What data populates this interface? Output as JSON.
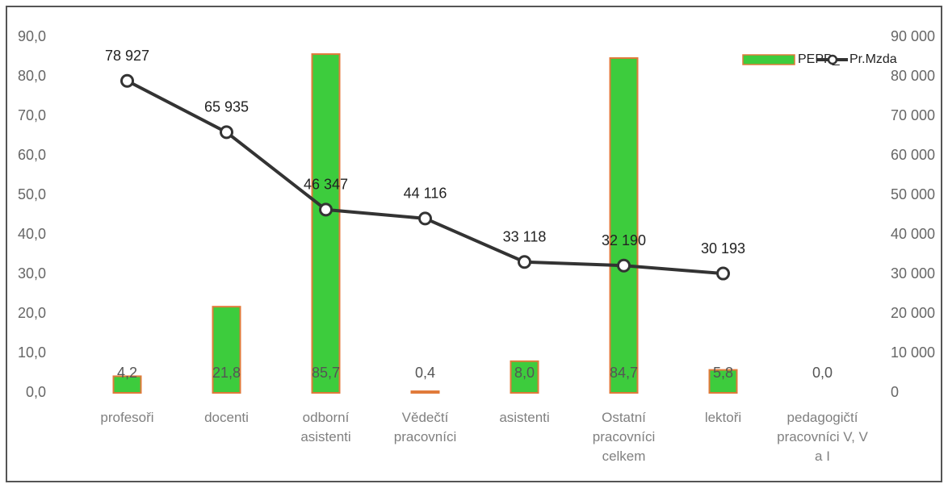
{
  "chart_data": {
    "type": "combo",
    "categories": [
      "profesoři",
      "docenti",
      "odborní asistenti",
      "Vědečtí pracovníci",
      "asistenti",
      "Ostatní pracovníci celkem",
      "lektoři",
      "pedagogičtí pracovníci V, V a I"
    ],
    "series": [
      {
        "name": "PEPP_",
        "type": "bar",
        "color": "#3dcc3d",
        "values": [
          4.2,
          21.8,
          85.7,
          0.4,
          8.0,
          84.7,
          5.8,
          0.0
        ],
        "value_labels": [
          "4,2",
          "21,8",
          "85,7",
          "0,4",
          "8,0",
          "84,7",
          "5,8",
          "0,0"
        ]
      },
      {
        "name": "Pr.Mzda",
        "type": "line",
        "axis": "y2",
        "color": "#333333",
        "values": [
          78927,
          65935,
          46347,
          44116,
          33118,
          32190,
          30193,
          null
        ],
        "value_labels": [
          "78 927",
          "65 935",
          "46 347",
          "44 116",
          "33 118",
          "32 190",
          "30 193",
          null
        ]
      }
    ],
    "ylim": [
      0,
      90
    ],
    "yticks": [
      {
        "value": 0,
        "label": "0,0"
      },
      {
        "value": 10,
        "label": "10,0"
      },
      {
        "value": 20,
        "label": "20,0"
      },
      {
        "value": 30,
        "label": "30,0"
      },
      {
        "value": 40,
        "label": "40,0"
      },
      {
        "value": 50,
        "label": "50,0"
      },
      {
        "value": 60,
        "label": "60,0"
      },
      {
        "value": 70,
        "label": "70,0"
      },
      {
        "value": 80,
        "label": "80,0"
      },
      {
        "value": 90,
        "label": "90,0"
      }
    ],
    "y2lim": [
      0,
      90000
    ],
    "y2ticks": [
      0,
      {
        "value": 10000,
        "label": "10 000"
      },
      {
        "value": 20000,
        "label": "20 000"
      },
      {
        "value": 30000,
        "label": "30 000"
      },
      {
        "value": 40000,
        "label": "40 000"
      },
      {
        "value": 50000,
        "label": "50 000"
      },
      {
        "value": 60000,
        "label": "60 000"
      },
      {
        "value": 70000,
        "label": "70 000"
      },
      {
        "value": 80000,
        "label": "80 000"
      },
      {
        "value": 90000,
        "label": "90 000"
      }
    ],
    "legend": "top-right",
    "grid": false
  }
}
